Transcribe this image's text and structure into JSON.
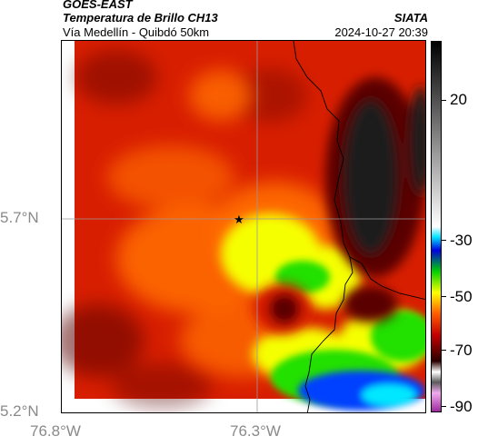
{
  "header": {
    "satellite": "GOES-EAST",
    "product": "Temperatura de Brillo CH13",
    "region": "Vía Medellín - Quibdó 50km",
    "agency": "SIATA",
    "datetime": "2024-10-27 20:39"
  },
  "axes": {
    "lat_labels": [
      "5.7°N",
      "5.2°N"
    ],
    "lon_labels": [
      "76.8°W",
      "76.3°W"
    ],
    "lat_values": [
      5.7,
      5.2
    ],
    "lon_values": [
      -76.8,
      -76.3
    ]
  },
  "colorbar": {
    "labels": [
      "20",
      "-30",
      "-50",
      "-70",
      "-90"
    ],
    "values": [
      20,
      -30,
      -50,
      -70,
      -90
    ],
    "range": [
      -95,
      45
    ],
    "stops": [
      {
        "value": -95,
        "color": "#9b2b9f"
      },
      {
        "value": -88,
        "color": "#f2a9ef"
      },
      {
        "value": -84,
        "color": "#5a5a5a"
      },
      {
        "value": -80,
        "color": "#ffffff"
      },
      {
        "value": -76,
        "color": "#2b0000"
      },
      {
        "value": -66,
        "color": "#c40000"
      },
      {
        "value": -58,
        "color": "#ff5a00"
      },
      {
        "value": -50,
        "color": "#ffff00"
      },
      {
        "value": -42,
        "color": "#00d000"
      },
      {
        "value": -34,
        "color": "#0000e0"
      },
      {
        "value": -29,
        "color": "#00e0ff"
      },
      {
        "value": -25,
        "color": "#ffffff"
      },
      {
        "value": 45,
        "color": "#000000"
      }
    ]
  },
  "map": {
    "marker_icon": "star-icon",
    "colors": {
      "warm_cloud_free": "#1b1b1b",
      "background_red": "#d81e00",
      "orange": "#ff6a00",
      "yellow": "#f6ff00",
      "green": "#20e000",
      "blue": "#0040ff",
      "cyan": "#00e8ff",
      "dark_red": "#5a0000",
      "grid_line": "#9a9a9a",
      "border_line": "#000000"
    }
  }
}
